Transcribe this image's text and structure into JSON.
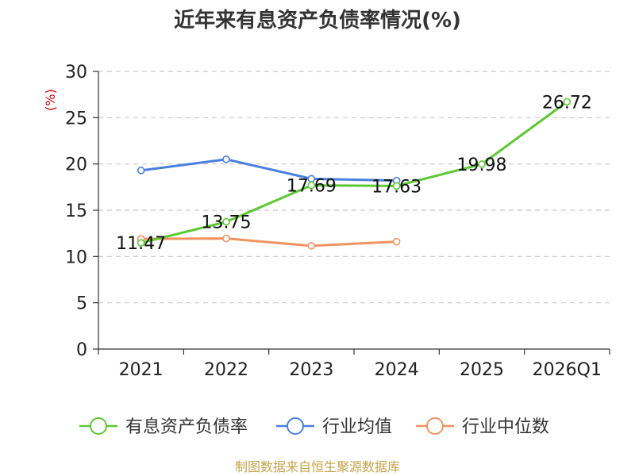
{
  "chart_data": {
    "type": "line",
    "title": "近年来有息资产负债率情况(%)",
    "ylabel": "(%)",
    "ylim": [
      0,
      30
    ],
    "yticks": [
      0,
      5,
      10,
      15,
      20,
      25,
      30
    ],
    "categories": [
      "2021",
      "2022",
      "2023",
      "2024",
      "2025",
      "2026Q1"
    ],
    "grid": true,
    "legend_position": "bottom",
    "series": [
      {
        "name": "有息资产负债率",
        "color": "#5cc832",
        "values": [
          11.47,
          13.75,
          17.69,
          17.63,
          19.98,
          26.72
        ],
        "show_labels": true
      },
      {
        "name": "行业均值",
        "color": "#4a7ee0",
        "values": [
          19.3,
          20.5,
          18.4,
          18.2,
          null,
          null
        ],
        "show_labels": false
      },
      {
        "name": "行业中位数",
        "color": "#f29261",
        "values": [
          11.9,
          11.95,
          11.15,
          11.6,
          null,
          null
        ],
        "show_labels": false
      }
    ],
    "data_labels": [
      "11.47",
      "13.75",
      "17.69",
      "17.63",
      "19.98",
      "26.72"
    ]
  },
  "footer": {
    "source": "制图数据来自恒生聚源数据库"
  }
}
